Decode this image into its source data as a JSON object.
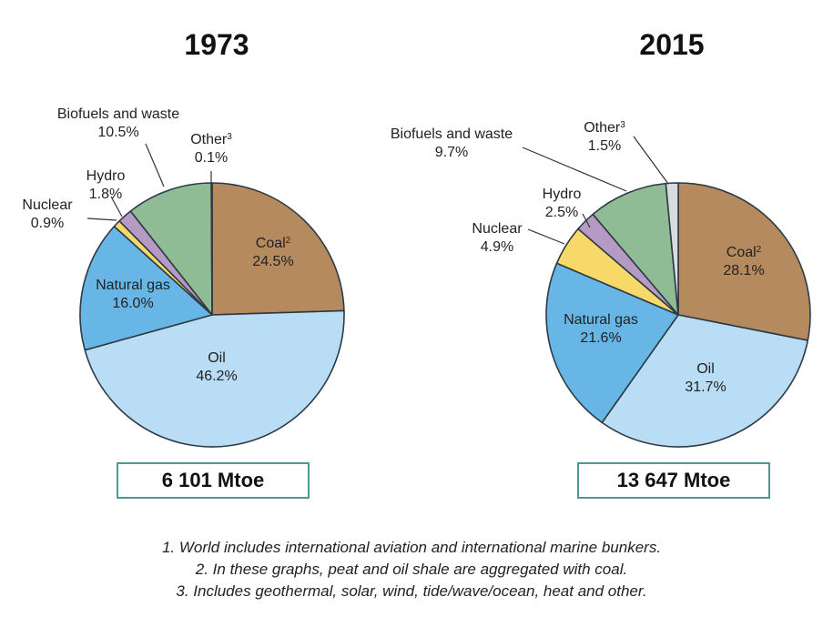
{
  "chart_data": [
    {
      "type": "pie",
      "title": "1973",
      "total": "6 101 Mtoe",
      "slices": [
        {
          "name": "Coal",
          "sup": "2",
          "value": 24.5,
          "label": "24.5%",
          "color": "#b58a5e"
        },
        {
          "name": "Oil",
          "value": 46.2,
          "label": "46.2%",
          "color": "#b9ddf4"
        },
        {
          "name": "Natural gas",
          "value": 16.0,
          "label": "16.0%",
          "color": "#67b6e6"
        },
        {
          "name": "Nuclear",
          "value": 0.9,
          "label": "0.9%",
          "color": "#f7d96a"
        },
        {
          "name": "Hydro",
          "value": 1.8,
          "label": "1.8%",
          "color": "#b59ac4"
        },
        {
          "name": "Biofuels and waste",
          "value": 10.5,
          "label": "10.5%",
          "color": "#8fbc95"
        },
        {
          "name": "Other",
          "sup": "3",
          "value": 0.1,
          "label": "0.1%",
          "color": "#d9dcde"
        }
      ]
    },
    {
      "type": "pie",
      "title": "2015",
      "total": "13 647 Mtoe",
      "slices": [
        {
          "name": "Coal",
          "sup": "2",
          "value": 28.1,
          "label": "28.1%",
          "color": "#b58a5e"
        },
        {
          "name": "Oil",
          "value": 31.7,
          "label": "31.7%",
          "color": "#b9ddf4"
        },
        {
          "name": "Natural gas",
          "value": 21.6,
          "label": "21.6%",
          "color": "#67b6e6"
        },
        {
          "name": "Nuclear",
          "value": 4.9,
          "label": "4.9%",
          "color": "#f7d96a"
        },
        {
          "name": "Hydro",
          "value": 2.5,
          "label": "2.5%",
          "color": "#b59ac4"
        },
        {
          "name": "Biofuels and waste",
          "value": 9.7,
          "label": "9.7%",
          "color": "#8fbc95"
        },
        {
          "name": "Other",
          "sup": "3",
          "value": 1.5,
          "label": "1.5%",
          "color": "#d9dcde"
        }
      ]
    }
  ],
  "notes": [
    "1. World includes international aviation and international marine bunkers.",
    "2. In these graphs, peat and oil shale are aggregated with coal.",
    "3. Includes geothermal, solar, wind, tide/wave/ocean, heat and other."
  ]
}
